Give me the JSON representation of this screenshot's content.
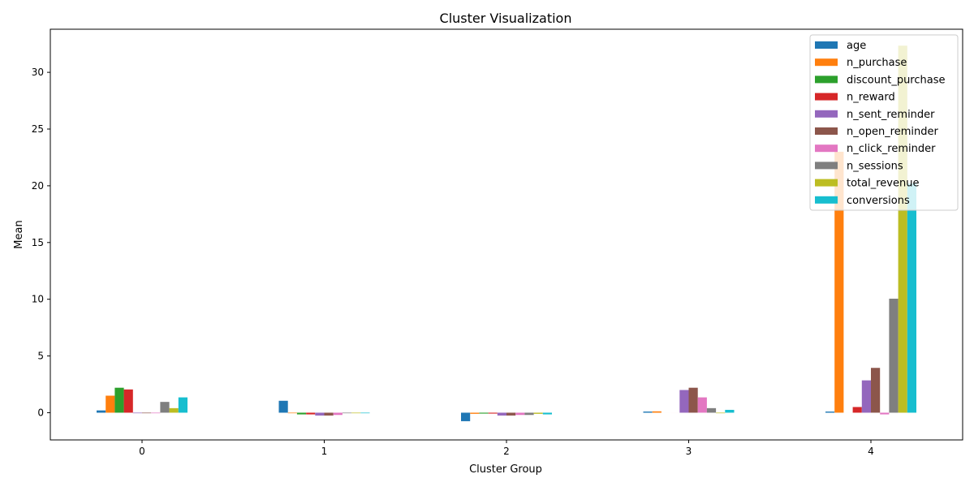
{
  "chart_data": {
    "type": "bar",
    "title": "Cluster Visualization",
    "xlabel": "Cluster Group",
    "ylabel": "Mean",
    "categories": [
      "0",
      "1",
      "2",
      "3",
      "4"
    ],
    "ylim": [
      -2.4,
      33.8
    ],
    "yticks": [
      0,
      5,
      10,
      15,
      20,
      25,
      30
    ],
    "grid": false,
    "legend_position": "top-right",
    "series": [
      {
        "name": "age",
        "color": "#1f77b4",
        "values": [
          0.2,
          1.05,
          -0.75,
          0.1,
          0.1
        ]
      },
      {
        "name": "n_purchase",
        "color": "#ff7f0e",
        "values": [
          1.5,
          -0.05,
          -0.1,
          0.12,
          23.0
        ]
      },
      {
        "name": "discount_purchase",
        "color": "#2ca02c",
        "values": [
          2.2,
          -0.15,
          -0.08,
          0.0,
          0.0
        ]
      },
      {
        "name": "n_reward",
        "color": "#d62728",
        "values": [
          2.05,
          -0.15,
          -0.08,
          0.0,
          0.5
        ]
      },
      {
        "name": "n_sent_reminder",
        "color": "#9467bd",
        "values": [
          -0.05,
          -0.25,
          -0.25,
          2.0,
          2.85
        ]
      },
      {
        "name": "n_open_reminder",
        "color": "#8c564b",
        "values": [
          -0.05,
          -0.25,
          -0.25,
          2.2,
          3.95
        ]
      },
      {
        "name": "n_click_reminder",
        "color": "#e377c2",
        "values": [
          -0.05,
          -0.2,
          -0.2,
          1.35,
          -0.15
        ]
      },
      {
        "name": "n_sessions",
        "color": "#7f7f7f",
        "values": [
          0.95,
          -0.05,
          -0.2,
          0.4,
          10.05
        ]
      },
      {
        "name": "total_revenue",
        "color": "#bcbd22",
        "values": [
          0.4,
          -0.05,
          -0.1,
          -0.05,
          32.35
        ]
      },
      {
        "name": "conversions",
        "color": "#17becf",
        "values": [
          1.35,
          -0.05,
          -0.15,
          0.25,
          20.2
        ]
      }
    ]
  }
}
